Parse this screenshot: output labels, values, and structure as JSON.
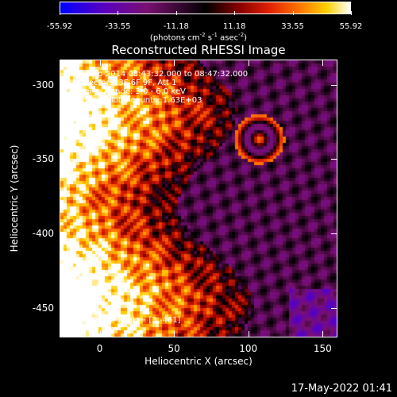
{
  "colorbar": {
    "ticks": [
      "-55.92",
      "-33.55",
      "-11.18",
      "11.18",
      "33.55",
      "55.92"
    ],
    "tick_values": [
      -55.92,
      -33.55,
      -11.18,
      11.18,
      33.55,
      55.92
    ],
    "range": [
      -55.92,
      55.92
    ],
    "units_prefix": "(photons cm",
    "units_exp1": "-2",
    "units_mid1": " s",
    "units_exp2": "-1",
    "units_mid2": " asec",
    "units_exp3": "-2",
    "units_suffix": ")"
  },
  "title": "Reconstructed RHESSI Image",
  "annotation": {
    "line1": "10-Sep-2014 08:43:32.000 to 08:47:32.000",
    "line2": "Detectors: 3F 6F 9F, Att 1",
    "line3": "Energy Range: 3.0 - 6.0 keV",
    "line4": "Clean     Total counts: 1.63E+03",
    "peak": "Position of Peak = [3,-461]"
  },
  "axes": {
    "xlabel": "Heliocentric X (arcsec)",
    "ylabel": "Heliocentric Y (arcsec)",
    "xticks": [
      "0",
      "50",
      "100",
      "150"
    ],
    "xtick_values": [
      0,
      50,
      100,
      150
    ],
    "yticks": [
      "-300",
      "-350",
      "-400",
      "-450"
    ],
    "ytick_values": [
      -300,
      -350,
      -400,
      -450
    ],
    "xlim": [
      -27,
      160
    ],
    "ylim": [
      -470,
      -283
    ]
  },
  "timestamp": "17-May-2022 01:41",
  "colors": {
    "background": "#000000",
    "foreground": "#ffffff"
  }
}
